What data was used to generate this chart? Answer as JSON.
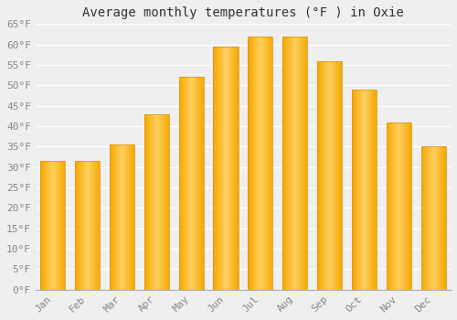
{
  "title": "Average monthly temperatures (°F ) in Oxie",
  "months": [
    "Jan",
    "Feb",
    "Mar",
    "Apr",
    "May",
    "Jun",
    "Jul",
    "Aug",
    "Sep",
    "Oct",
    "Nov",
    "Dec"
  ],
  "values": [
    31.5,
    31.5,
    35.5,
    43.0,
    52.0,
    59.5,
    62.0,
    62.0,
    56.0,
    49.0,
    41.0,
    35.0
  ],
  "bar_color_left": "#F5A800",
  "bar_color_center": "#FFD060",
  "bar_color_right": "#F5A800",
  "background_color": "#EFEFEF",
  "plot_bg_color": "#EFEFEF",
  "grid_color": "#FFFFFF",
  "tick_color": "#888888",
  "title_color": "#333333",
  "spine_color": "#AAAAAA",
  "ylim": [
    0,
    65
  ],
  "ytick_step": 5,
  "title_fontsize": 10,
  "tick_fontsize": 8,
  "bar_width": 0.72
}
